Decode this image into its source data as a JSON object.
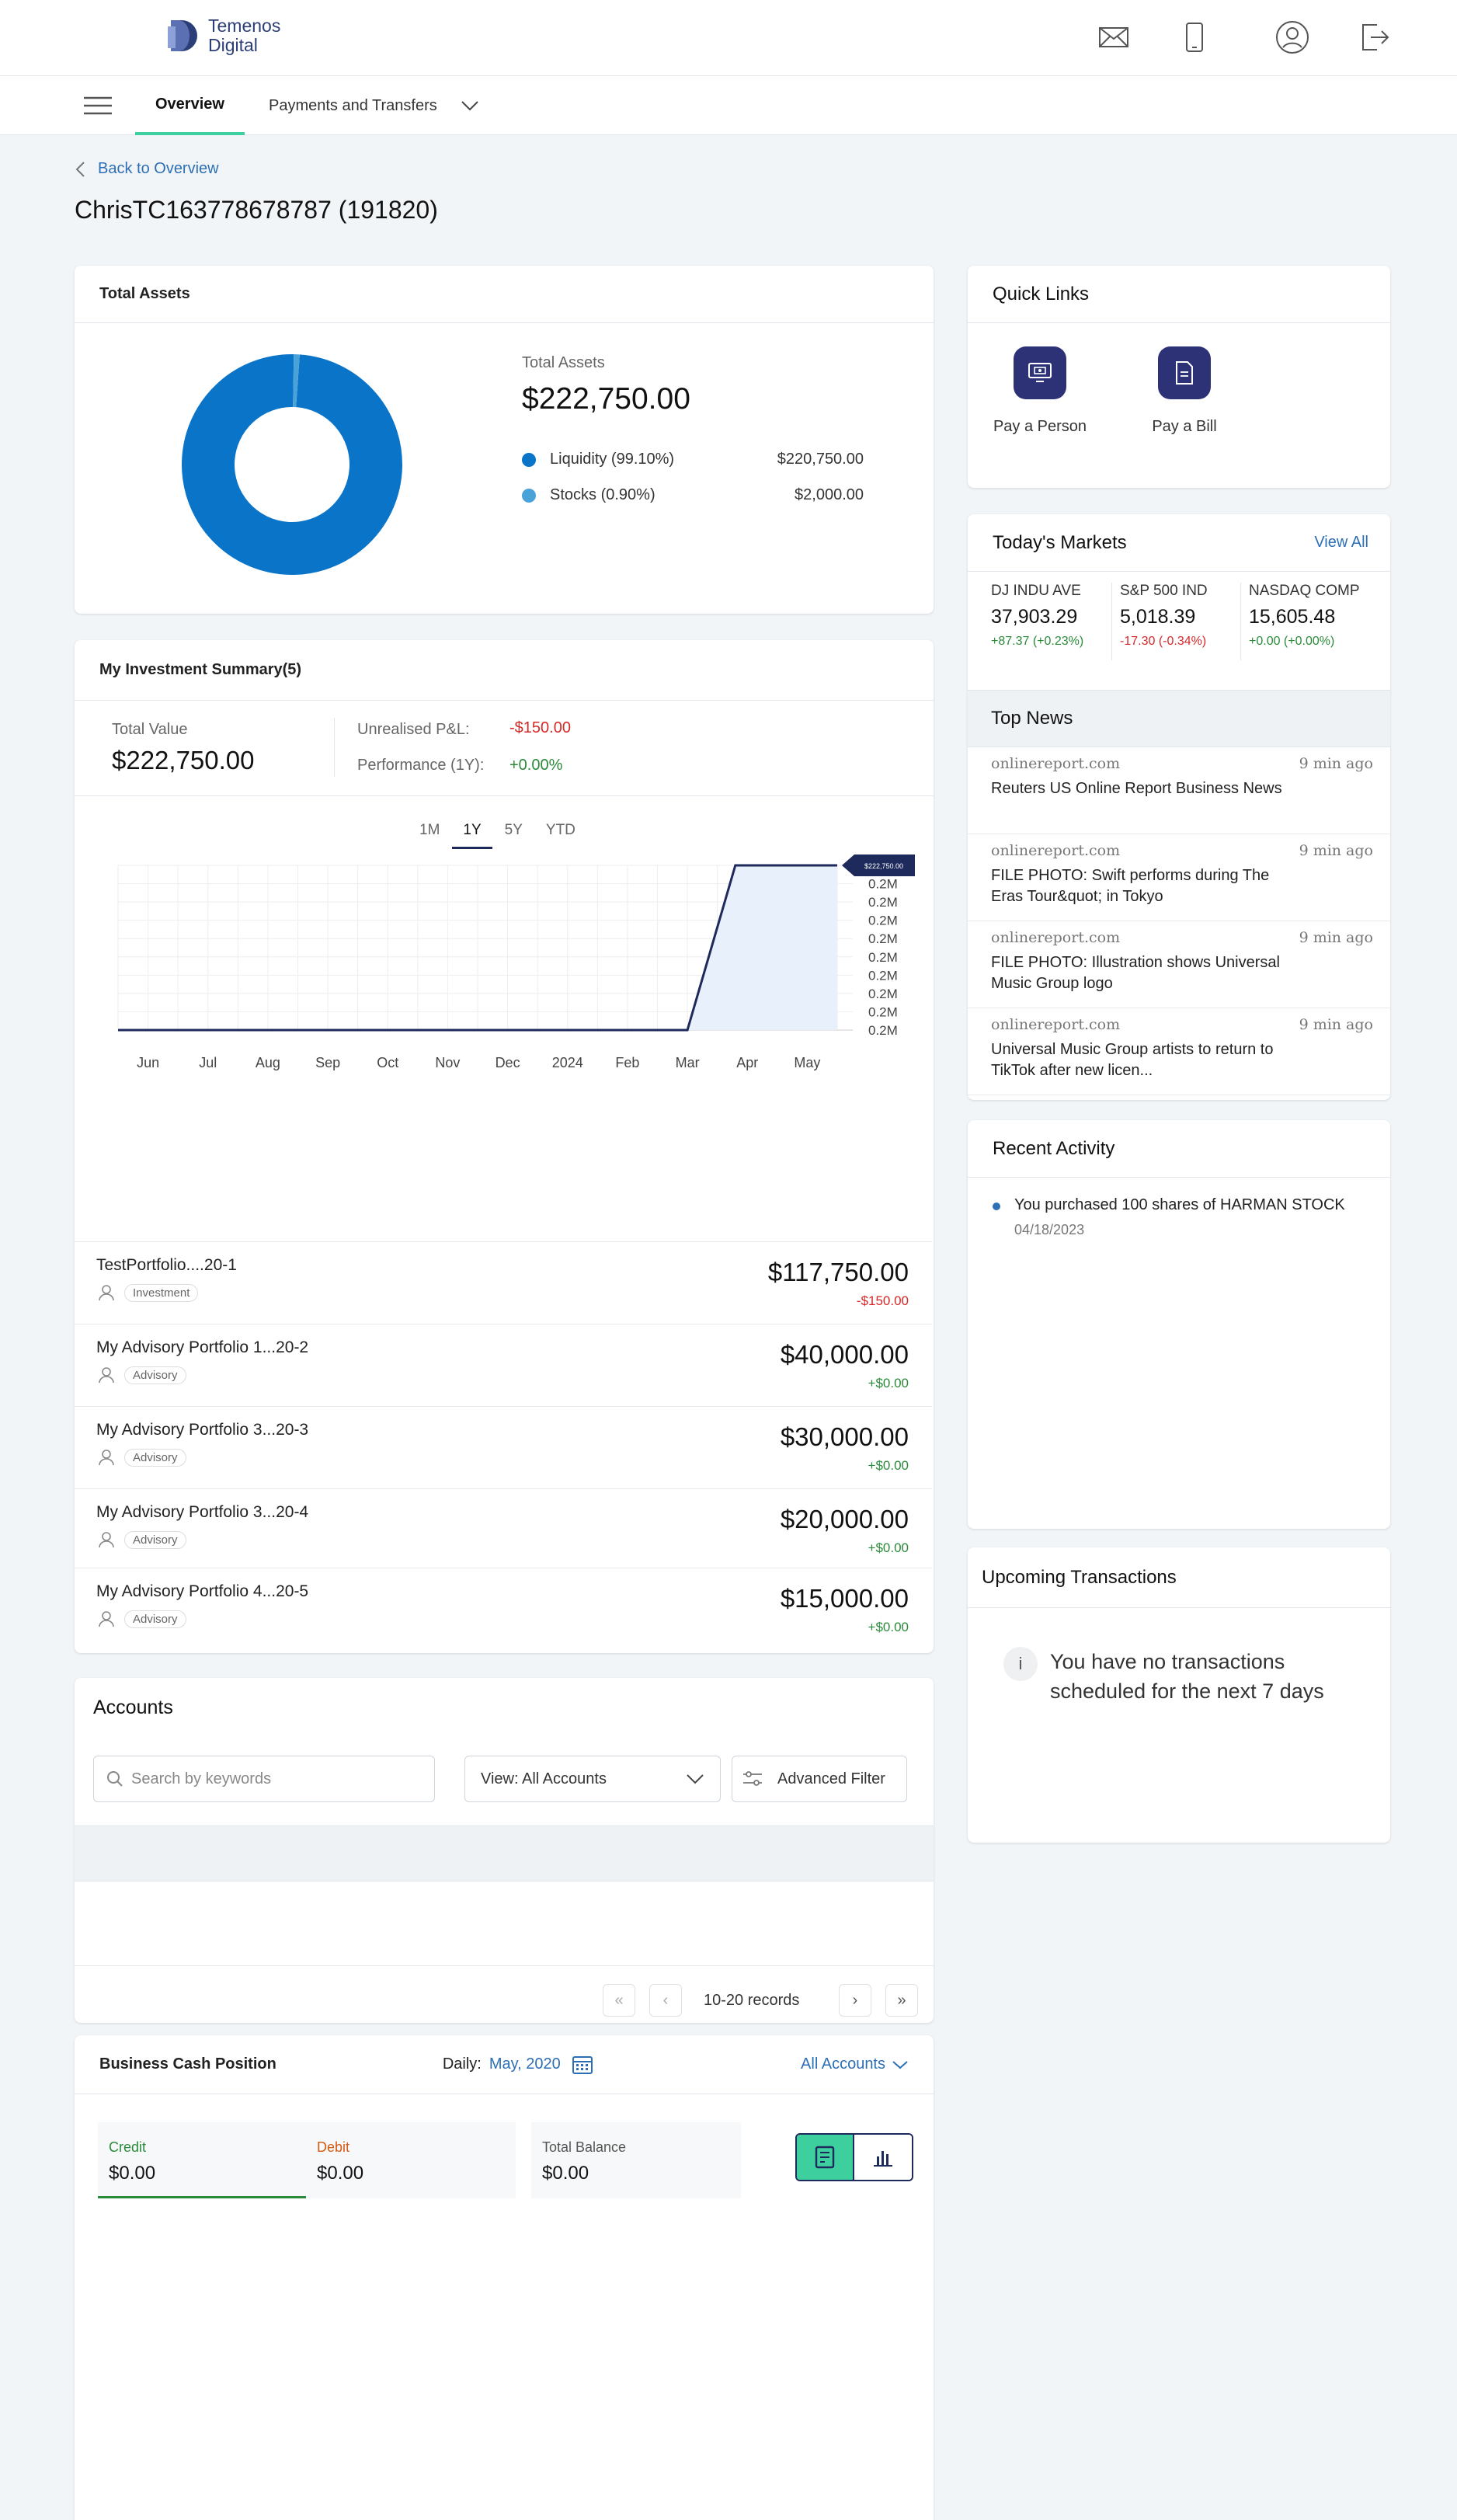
{
  "brand": {
    "line1": "Temenos",
    "line2": "Digital"
  },
  "nav": {
    "tabs": [
      {
        "label": "Overview"
      },
      {
        "label": "Payments and Transfers"
      }
    ]
  },
  "back_link": "Back to Overview",
  "page_title": "ChrisTC163778678787 (191820)",
  "total_assets": {
    "header": "Total Assets",
    "label": "Total Assets",
    "amount": "$222,750.00",
    "legend": [
      {
        "label": "Liquidity (99.10%)",
        "value": "$220,750.00",
        "color": "#0a74c9",
        "share": 99.1
      },
      {
        "label": "Stocks (0.90%)",
        "value": "$2,000.00",
        "color": "#4aa3d8",
        "share": 0.9
      }
    ]
  },
  "investment_summary": {
    "header": "My Investment Summary(5)",
    "total_value_label": "Total Value",
    "total_value": "$222,750.00",
    "pl_label": "Unrealised P&L:",
    "pl_value": "-$150.00",
    "perf_label": "Performance (1Y):",
    "perf_value": "+0.00%",
    "periods": [
      "1M",
      "1Y",
      "5Y",
      "YTD"
    ],
    "active_period": "1Y",
    "portfolios": [
      {
        "name": "TestPortfolio....20-1",
        "type": "Investment",
        "value": "$117,750.00",
        "change": "-$150.00",
        "neg": true
      },
      {
        "name": "My Advisory Portfolio 1...20-2",
        "type": "Advisory",
        "value": "$40,000.00",
        "change": "+$0.00",
        "neg": false
      },
      {
        "name": "My Advisory Portfolio 3...20-3",
        "type": "Advisory",
        "value": "$30,000.00",
        "change": "+$0.00",
        "neg": false
      },
      {
        "name": "My Advisory Portfolio 3...20-4",
        "type": "Advisory",
        "value": "$20,000.00",
        "change": "+$0.00",
        "neg": false
      },
      {
        "name": "My Advisory Portfolio 4...20-5",
        "type": "Advisory",
        "value": "$15,000.00",
        "change": "+$0.00",
        "neg": false
      }
    ]
  },
  "chart_data": {
    "type": "area",
    "categories": [
      "Jun",
      "Jul",
      "Aug",
      "Sep",
      "Oct",
      "Nov",
      "Dec",
      "2024",
      "Feb",
      "Mar",
      "Apr",
      "May"
    ],
    "values": [
      0,
      0,
      0,
      0,
      0,
      0,
      0,
      0,
      0,
      0,
      222750,
      222750
    ],
    "y_tick_labels": [
      "0.2M",
      "0.2M",
      "0.2M",
      "0.2M",
      "0.2M",
      "0.2M",
      "0.2M",
      "0.2M",
      "0.2M",
      "0.2M"
    ],
    "tooltip": "$222,750.00",
    "ylim": [
      0,
      222750
    ],
    "grid": true,
    "color": "#1f2a5c"
  },
  "quick_links": {
    "header": "Quick Links",
    "items": [
      {
        "label": "Pay a Person",
        "icon": "pay-person-icon"
      },
      {
        "label": "Pay a Bill",
        "icon": "pay-bill-icon"
      }
    ]
  },
  "markets": {
    "header": "Today's Markets",
    "view_all": "View All",
    "items": [
      {
        "name": "DJ INDU AVE",
        "value": "37,903.29",
        "change": "+87.37 (+0.23%)",
        "color": "#2a8a3a"
      },
      {
        "name": "S&P 500 IND",
        "value": "5,018.39",
        "change": "-17.30 (-0.34%)",
        "color": "#d62828"
      },
      {
        "name": "NASDAQ COMP",
        "value": "15,605.48",
        "change": "+0.00 (+0.00%)",
        "color": "#2a8a3a"
      }
    ]
  },
  "top_news": {
    "header": "Top News",
    "items": [
      {
        "source": "onlinereport.com",
        "time": "9 min ago",
        "headline": "Reuters US Online Report Business News"
      },
      {
        "source": "onlinereport.com",
        "time": "9 min ago",
        "headline": "FILE PHOTO: Swift performs during The Eras Tour&quot; in Tokyo"
      },
      {
        "source": "onlinereport.com",
        "time": "9 min ago",
        "headline": "FILE PHOTO: Illustration shows Universal Music Group logo"
      },
      {
        "source": "onlinereport.com",
        "time": "9 min ago",
        "headline": "Universal Music Group artists to return to TikTok after new licen..."
      }
    ]
  },
  "recent_activity": {
    "header": "Recent Activity",
    "items": [
      {
        "text": "You purchased 100 shares of HARMAN STOCK",
        "date": "04/18/2023"
      }
    ]
  },
  "upcoming": {
    "header": "Upcoming Transactions",
    "message": "You have no transactions scheduled for the next 7 days"
  },
  "accounts": {
    "header": "Accounts",
    "search_placeholder": "Search by keywords",
    "view_filter": "View: All Accounts",
    "advanced_filter": "Advanced Filter",
    "records": "10-20 records"
  },
  "cash_position": {
    "header": "Business Cash Position",
    "daily_label": "Daily:",
    "daily_value": "May, 2020",
    "accounts_filter": "All Accounts",
    "credit_label": "Credit",
    "credit_value": "$0.00",
    "debit_label": "Debit",
    "debit_value": "$0.00",
    "balance_label": "Total Balance",
    "balance_value": "$0.00"
  }
}
